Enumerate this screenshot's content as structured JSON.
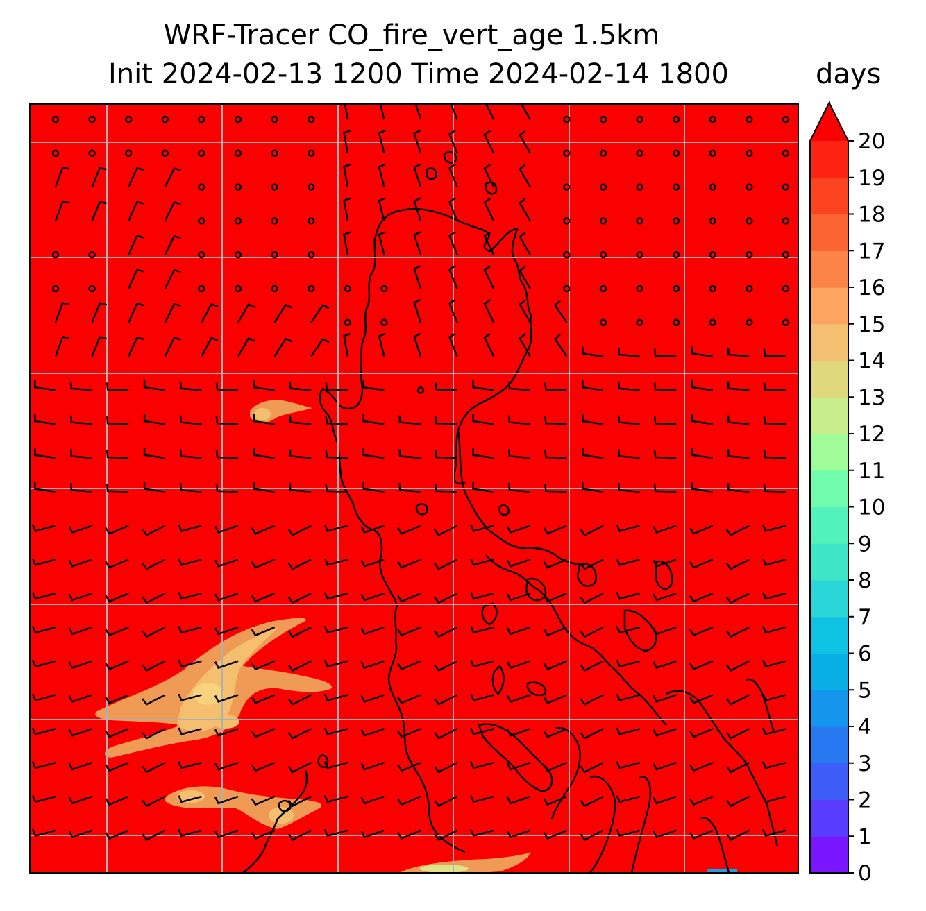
{
  "title_line1": "WRF-Tracer CO_fire_vert_age 1.5km",
  "title_line2": "Init 2024-02-13 1200 Time 2024-02-14 1800",
  "units": "days",
  "colorbar": {
    "min": 0,
    "max": 20,
    "extend": "max",
    "tick_labels": [
      "0",
      "1",
      "2",
      "3",
      "4",
      "5",
      "6",
      "7",
      "8",
      "9",
      "10",
      "11",
      "12",
      "13",
      "14",
      "15",
      "16",
      "17",
      "18",
      "19",
      "20"
    ],
    "colors": [
      "#7a16ff",
      "#5a3cff",
      "#3d5cf8",
      "#2878f2",
      "#1496ec",
      "#0aaee6",
      "#10c2e2",
      "#2ad6d8",
      "#3ee6c8",
      "#52f2bc",
      "#70fcac",
      "#a0fc98",
      "#c8ee8c",
      "#e0d87c",
      "#f2c070",
      "#fca460",
      "#fc8448",
      "#fc6434",
      "#fc4420",
      "#fc2410"
    ],
    "extend_color": "#fb0000"
  },
  "map": {
    "background_value": "20+ days",
    "background_color": "#fb0000",
    "gridlines": true,
    "coastline_color": "#000000",
    "wind_barb_color": "#000000"
  }
}
